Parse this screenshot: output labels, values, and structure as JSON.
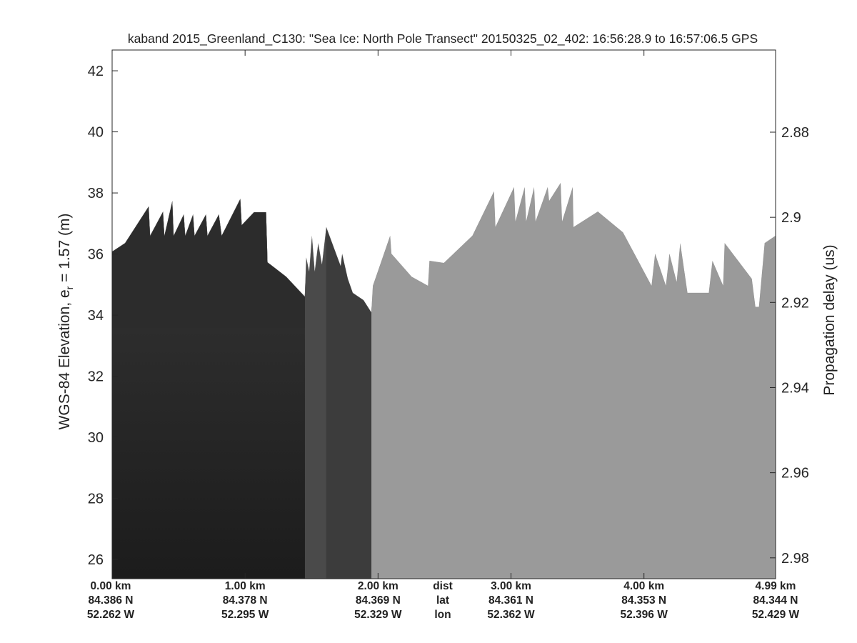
{
  "chart_data": {
    "type": "heatmap",
    "title": "kaband 2015_Greenland_C130: \"Sea Ice: North Pole Transect\"  20150325_02_402: 16:56:28.9 to 16:57:06.5 GPS",
    "ylabel_left_main": "WGS-84 Elevation, e",
    "ylabel_left_sub": "r",
    "ylabel_left_tail": " = 1.57 (m)",
    "ylabel_right": "Propagation delay (us)",
    "xlim_km": [
      0,
      4.99
    ],
    "ylim_left": [
      25.37,
      42.68
    ],
    "ylim_right": [
      2.9849,
      2.8607
    ],
    "yticks_left": [
      "26",
      "28",
      "30",
      "32",
      "34",
      "36",
      "38",
      "40",
      "42"
    ],
    "yticks_right": [
      "2.88",
      "2.9",
      "2.92",
      "2.94",
      "2.96",
      "2.98"
    ],
    "x_ticks": [
      {
        "dist": "0.00 km",
        "lat": "84.386 N",
        "lon": "52.262 W",
        "km": 0
      },
      {
        "dist": "1.00 km",
        "lat": "84.378 N",
        "lon": "52.295 W",
        "km": 1
      },
      {
        "dist": "2.00 km",
        "lat": "84.369 N",
        "lon": "52.329 W",
        "km": 2
      },
      {
        "dist": "3.00 km",
        "lat": "84.361 N",
        "lon": "52.362 W",
        "km": 3
      },
      {
        "dist": "4.00 km",
        "lat": "84.353 N",
        "lon": "52.396 W",
        "km": 4
      },
      {
        "dist": "4.99 km",
        "lat": "84.344 N",
        "lon": "52.429 W",
        "km": 4.99
      }
    ],
    "row_labels": {
      "dist": "dist",
      "lat": "lat",
      "lon": "lon"
    },
    "colormap": "gray",
    "grid": false,
    "segments": [
      {
        "from_km": 0,
        "to_km": 1.45,
        "color": "#232323"
      },
      {
        "from_km": 1.45,
        "to_km": 1.61,
        "color": "#4a4a4a"
      },
      {
        "from_km": 1.61,
        "to_km": 1.95,
        "color": "#3c3c3c"
      },
      {
        "from_km": 1.95,
        "to_km": 4.99,
        "color": "#9a9a9a"
      }
    ],
    "surface_elevation": [
      [
        0,
        36.08
      ],
      [
        0.097,
        36.36
      ],
      [
        0.275,
        37.56
      ],
      [
        0.286,
        36.6
      ],
      [
        0.383,
        37.39
      ],
      [
        0.393,
        36.6
      ],
      [
        0.453,
        37.74
      ],
      [
        0.463,
        36.6
      ],
      [
        0.539,
        37.3
      ],
      [
        0.55,
        36.6
      ],
      [
        0.609,
        37.3
      ],
      [
        0.62,
        36.6
      ],
      [
        0.706,
        37.3
      ],
      [
        0.717,
        36.6
      ],
      [
        0.803,
        37.3
      ],
      [
        0.824,
        36.6
      ],
      [
        0.964,
        37.81
      ],
      [
        0.975,
        36.95
      ],
      [
        1.067,
        37.37
      ],
      [
        1.158,
        37.37
      ],
      [
        1.169,
        35.73
      ],
      [
        1.309,
        35.26
      ],
      [
        1.449,
        34.61
      ],
      [
        1.46,
        35.89
      ],
      [
        1.482,
        35.43
      ],
      [
        1.503,
        36.6
      ],
      [
        1.524,
        35.43
      ],
      [
        1.55,
        36.36
      ],
      [
        1.578,
        35.66
      ],
      [
        1.611,
        36.88
      ],
      [
        1.719,
        35.61
      ],
      [
        1.73,
        36.01
      ],
      [
        1.773,
        35.19
      ],
      [
        1.81,
        34.73
      ],
      [
        1.891,
        34.49
      ],
      [
        1.95,
        34.09
      ],
      [
        1.961,
        34.96
      ],
      [
        2.026,
        35.78
      ],
      [
        2.091,
        36.6
      ],
      [
        2.101,
        36.01
      ],
      [
        2.252,
        35.26
      ],
      [
        2.376,
        34.96
      ],
      [
        2.387,
        35.78
      ],
      [
        2.495,
        35.71
      ],
      [
        2.71,
        36.6
      ],
      [
        2.872,
        38.05
      ],
      [
        2.883,
        36.88
      ],
      [
        3.023,
        38.19
      ],
      [
        3.033,
        37.06
      ],
      [
        3.103,
        38.19
      ],
      [
        3.114,
        37.06
      ],
      [
        3.174,
        38.19
      ],
      [
        3.184,
        37.06
      ],
      [
        3.276,
        38.19
      ],
      [
        3.287,
        37.74
      ],
      [
        3.373,
        38.33
      ],
      [
        3.384,
        37.06
      ],
      [
        3.464,
        38.19
      ],
      [
        3.47,
        36.88
      ],
      [
        3.653,
        37.39
      ],
      [
        3.842,
        36.71
      ],
      [
        4.057,
        34.96
      ],
      [
        4.084,
        36.01
      ],
      [
        4.165,
        34.96
      ],
      [
        4.192,
        36.01
      ],
      [
        4.246,
        35.08
      ],
      [
        4.273,
        36.36
      ],
      [
        4.327,
        34.73
      ],
      [
        4.488,
        34.73
      ],
      [
        4.515,
        35.78
      ],
      [
        4.596,
        34.96
      ],
      [
        4.607,
        36.36
      ],
      [
        4.811,
        35.19
      ],
      [
        4.838,
        34.27
      ],
      [
        4.865,
        34.27
      ],
      [
        4.908,
        36.36
      ],
      [
        4.99,
        36.6
      ]
    ],
    "colors": {
      "air": "#ffffff",
      "axis": "#262626"
    }
  }
}
